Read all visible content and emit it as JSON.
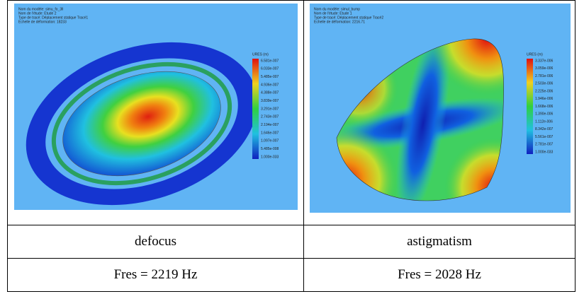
{
  "table": {
    "rows": [
      [
        {
          "header_lines": [
            "Nom du modèle: simu_fo_3ll",
            "Nom de l'étude: Etude 2",
            "Type de tracé: Déplacement statique Tracé1",
            "Echelle de déformation: 18233"
          ],
          "legend_title": "URES (m)",
          "legend_labels": [
            "6.581e-007",
            "6.033e-007",
            "5.485e-007",
            "4.936e-007",
            "4.388e-007",
            "3.839e-007",
            "3.291e-007",
            "2.743e-007",
            "2.194e-007",
            "1.646e-007",
            "1.097e-007",
            "5.485e-008",
            "1.000e-033"
          ]
        },
        {
          "header_lines": [
            "Nom du modèle: simul_bump",
            "Nom de l'étude: Etude 1",
            "Type de tracé: Déplacement statique Tracé2",
            "Echelle de déformation: 2216.71"
          ],
          "legend_title": "URES (m)",
          "legend_labels": [
            "3.337e-006",
            "3.059e-006",
            "2.781e-006",
            "2.503e-006",
            "2.225e-006",
            "1.946e-006",
            "1.668e-006",
            "1.390e-006",
            "1.112e-006",
            "8.342e-007",
            "5.561e-007",
            "2.781e-007",
            "1.000e-033"
          ]
        }
      ],
      [
        "defocus",
        "astigmatism"
      ],
      [
        "Fres = 2219 Hz",
        "Fres = 2028 Hz"
      ]
    ]
  }
}
